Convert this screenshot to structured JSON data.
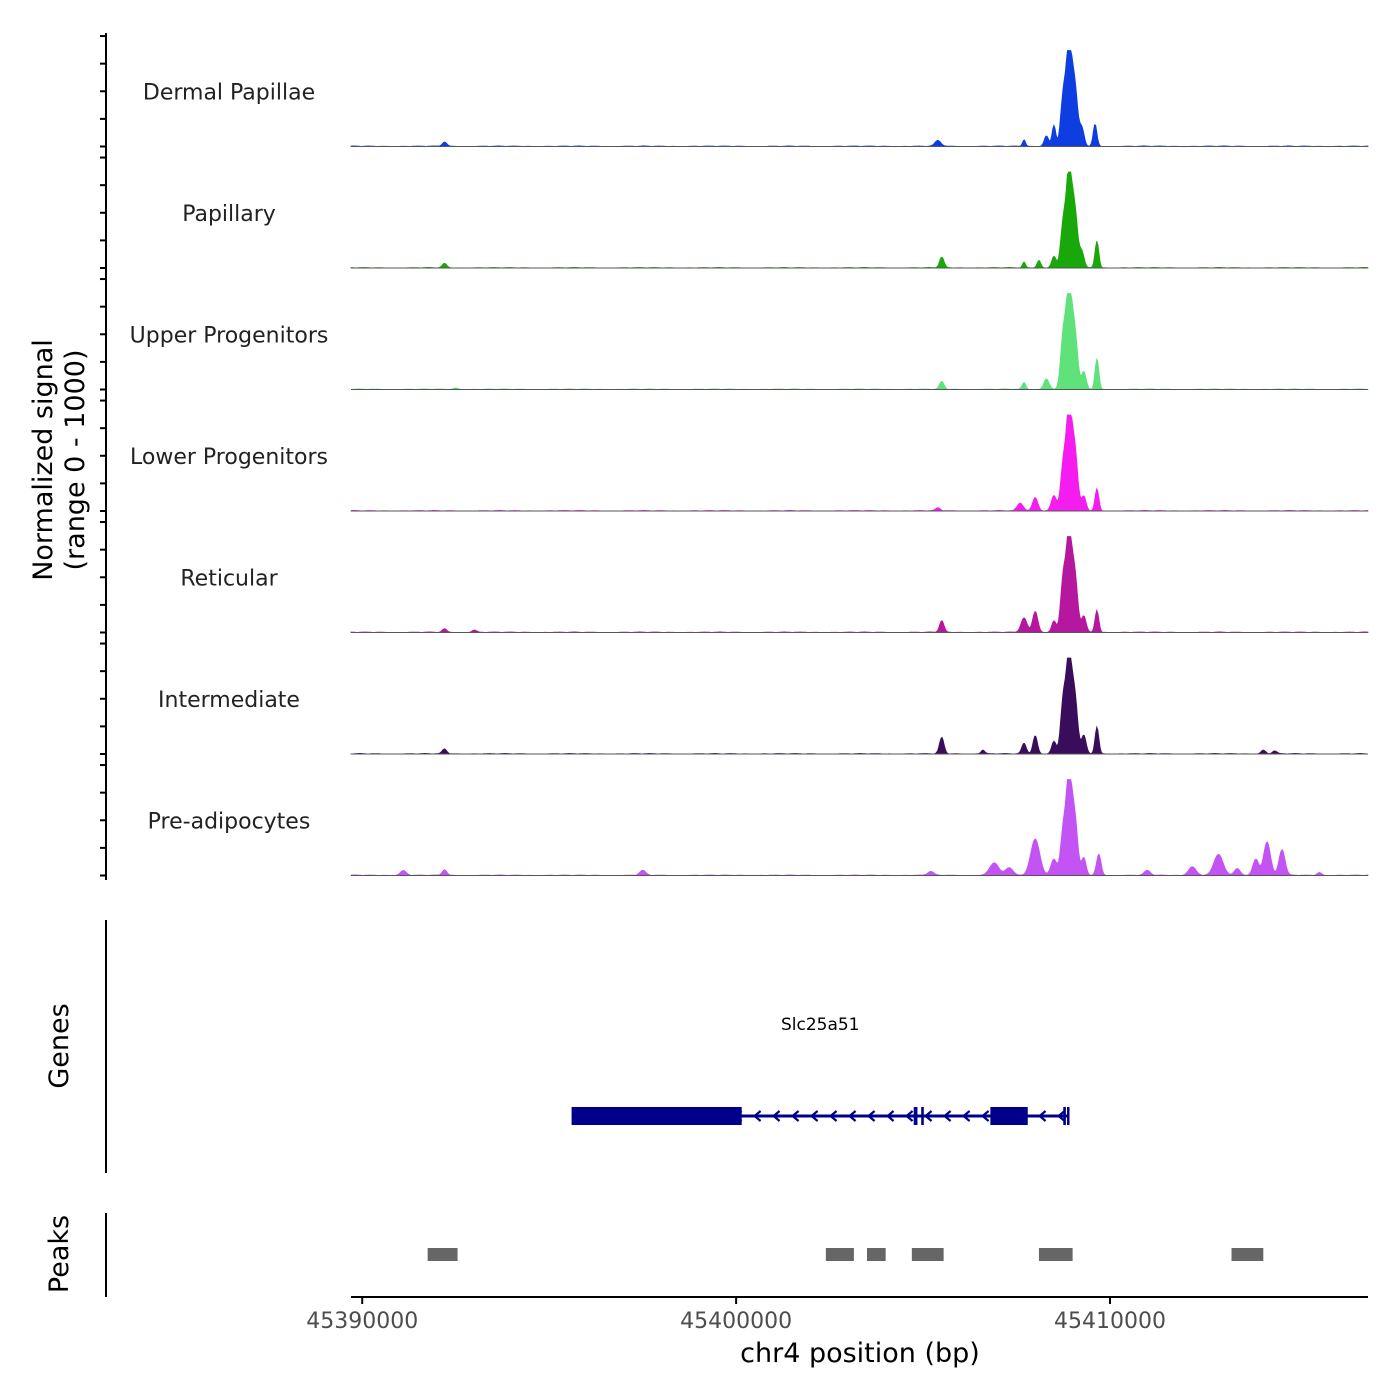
{
  "chart_data": {
    "type": "area",
    "title": "",
    "ylabel_line1": "Normalized signal",
    "ylabel_line2": "(range 0 - 1000)",
    "xlabel": "chr4 position (bp)",
    "xlim": [
      45389700,
      45416900
    ],
    "ylim": [
      0,
      1000
    ],
    "xticks": [
      45390000,
      45400000,
      45410000
    ],
    "xtick_labels": [
      "45390000",
      "45400000",
      "45410000"
    ],
    "series": [
      {
        "name": "Dermal Papillae",
        "color": "#0f3ee0",
        "peaks": [
          [
            45392200,
            45,
            60
          ],
          [
            45405400,
            60,
            80
          ],
          [
            45407700,
            70,
            40
          ],
          [
            45408300,
            110,
            60
          ],
          [
            45408500,
            220,
            50
          ],
          [
            45408750,
            520,
            70
          ],
          [
            45408900,
            980,
            70
          ],
          [
            45409050,
            650,
            80
          ],
          [
            45409250,
            180,
            60
          ],
          [
            45409600,
            230,
            50
          ]
        ]
      },
      {
        "name": "Papillary",
        "color": "#18a80a",
        "peaks": [
          [
            45392200,
            45,
            60
          ],
          [
            45405500,
            110,
            60
          ],
          [
            45407700,
            60,
            40
          ],
          [
            45408100,
            80,
            50
          ],
          [
            45408500,
            120,
            60
          ],
          [
            45408750,
            460,
            70
          ],
          [
            45408900,
            940,
            70
          ],
          [
            45409050,
            620,
            80
          ],
          [
            45409250,
            160,
            60
          ],
          [
            45409650,
            280,
            50
          ]
        ]
      },
      {
        "name": "Upper Progenitors",
        "color": "#5fe27a",
        "peaks": [
          [
            45392500,
            15,
            60
          ],
          [
            45405500,
            80,
            60
          ],
          [
            45407700,
            70,
            50
          ],
          [
            45408300,
            110,
            70
          ],
          [
            45408750,
            570,
            70
          ],
          [
            45408900,
            1000,
            70
          ],
          [
            45409050,
            620,
            80
          ],
          [
            45409300,
            180,
            60
          ],
          [
            45409650,
            320,
            50
          ]
        ]
      },
      {
        "name": "Lower Progenitors",
        "color": "#f51cf0",
        "peaks": [
          [
            45405400,
            30,
            60
          ],
          [
            45407600,
            80,
            80
          ],
          [
            45408000,
            140,
            70
          ],
          [
            45408500,
            160,
            70
          ],
          [
            45408750,
            480,
            70
          ],
          [
            45408900,
            1000,
            70
          ],
          [
            45409050,
            660,
            80
          ],
          [
            45409300,
            150,
            60
          ],
          [
            45409650,
            230,
            50
          ]
        ]
      },
      {
        "name": "Reticular",
        "color": "#b5179e",
        "peaks": [
          [
            45392200,
            35,
            60
          ],
          [
            45393000,
            25,
            60
          ],
          [
            45405500,
            120,
            60
          ],
          [
            45407700,
            150,
            80
          ],
          [
            45408000,
            220,
            70
          ],
          [
            45408500,
            120,
            60
          ],
          [
            45408750,
            560,
            70
          ],
          [
            45408900,
            950,
            70
          ],
          [
            45409050,
            620,
            80
          ],
          [
            45409300,
            170,
            60
          ],
          [
            45409650,
            230,
            50
          ]
        ]
      },
      {
        "name": "Intermediate",
        "color": "#3a0c5c",
        "peaks": [
          [
            45392200,
            50,
            60
          ],
          [
            45405500,
            170,
            60
          ],
          [
            45406600,
            40,
            50
          ],
          [
            45407700,
            110,
            60
          ],
          [
            45408000,
            190,
            60
          ],
          [
            45408500,
            130,
            60
          ],
          [
            45408750,
            560,
            70
          ],
          [
            45408900,
            950,
            70
          ],
          [
            45409050,
            620,
            80
          ],
          [
            45409300,
            190,
            60
          ],
          [
            45409650,
            280,
            50
          ],
          [
            45414100,
            40,
            60
          ],
          [
            45414400,
            30,
            60
          ]
        ]
      },
      {
        "name": "Pre-adipocytes",
        "color": "#c354f3",
        "peaks": [
          [
            45391100,
            50,
            80
          ],
          [
            45392200,
            60,
            60
          ],
          [
            45397500,
            50,
            80
          ],
          [
            45405200,
            40,
            80
          ],
          [
            45406900,
            130,
            120
          ],
          [
            45407300,
            80,
            100
          ],
          [
            45408000,
            380,
            120
          ],
          [
            45408500,
            170,
            80
          ],
          [
            45408750,
            470,
            70
          ],
          [
            45408900,
            1000,
            70
          ],
          [
            45409050,
            620,
            80
          ],
          [
            45409300,
            180,
            60
          ],
          [
            45409700,
            220,
            60
          ],
          [
            45411000,
            50,
            80
          ],
          [
            45412200,
            90,
            100
          ],
          [
            45412900,
            220,
            120
          ],
          [
            45413400,
            70,
            80
          ],
          [
            45413900,
            170,
            80
          ],
          [
            45414200,
            350,
            90
          ],
          [
            45414600,
            270,
            80
          ],
          [
            45415600,
            30,
            60
          ]
        ]
      }
    ],
    "genes": [
      {
        "name": "Slc25a51",
        "start": 45395600,
        "end": 45408900,
        "strand": "-",
        "color": "#00008b",
        "exons": [
          [
            45395600,
            45400150
          ],
          [
            45404750,
            45404850
          ],
          [
            45404950,
            45405020
          ],
          [
            45406800,
            45407800
          ],
          [
            45408750,
            45408820
          ],
          [
            45408850,
            45408900
          ]
        ]
      }
    ],
    "gene_track_label": "Genes",
    "peaks_track_label": "Peaks",
    "peaks_color": "#666666",
    "peak_regions": [
      [
        45391750,
        45392550
      ],
      [
        45402400,
        45403150
      ],
      [
        45403500,
        45404000
      ],
      [
        45404700,
        45405550
      ],
      [
        45408100,
        45409000
      ],
      [
        45413250,
        45414100
      ]
    ]
  }
}
